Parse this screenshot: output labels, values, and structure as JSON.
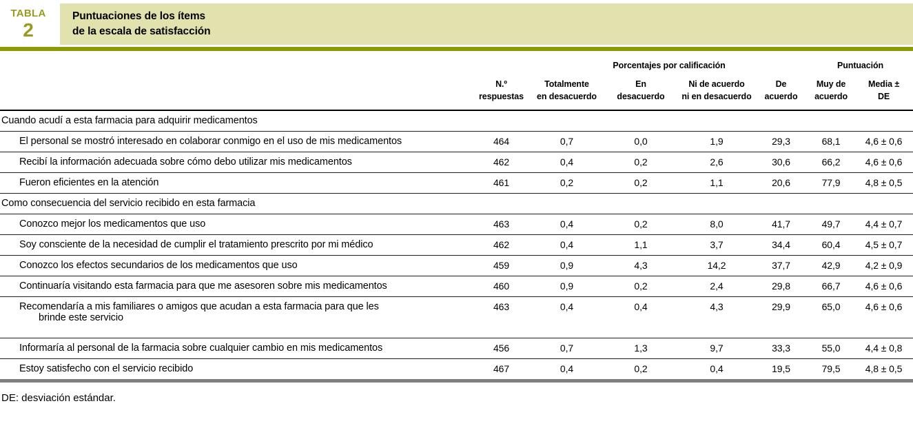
{
  "header": {
    "tab_label": "TABLA",
    "tab_number": "2",
    "title_line1": "Puntuaciones de los ítems",
    "title_line2": "de la escala de satisfacción"
  },
  "colors": {
    "olive_accent_text": "#999a1e",
    "olive_bar": "#8e9906",
    "title_box_bg": "#e2e2af",
    "table_bottom_bar": "#7f7f7f"
  },
  "table": {
    "group_headers": {
      "percentages": "Porcentajes por calificación",
      "score": "Puntuación"
    },
    "columns": [
      "N.º\nrespuestas",
      "Totalmente\nen desacuerdo",
      "En\ndesacuerdo",
      "Ni de acuerdo\nni en desacuerdo",
      "De\nacuerdo",
      "Muy de\nacuerdo",
      "Media ±\nDE"
    ],
    "rows": [
      {
        "type": "section",
        "label": "Cuando acudí a esta farmacia para adquirir medicamentos"
      },
      {
        "type": "item",
        "label": "El personal se mostró interesado en colaborar conmigo en el uso de mis medicamentos",
        "values": [
          "464",
          "0,7",
          "0,0",
          "1,9",
          "29,3",
          "68,1",
          "4,6 ± 0,6"
        ]
      },
      {
        "type": "item",
        "label": "Recibí la información adecuada sobre cómo debo utilizar mis medicamentos",
        "values": [
          "462",
          "0,4",
          "0,2",
          "2,6",
          "30,6",
          "66,2",
          "4,6 ± 0,6"
        ]
      },
      {
        "type": "item",
        "label": "Fueron eficientes en la atención",
        "values": [
          "461",
          "0,2",
          "0,2",
          "1,1",
          "20,6",
          "77,9",
          "4,8 ± 0,5"
        ]
      },
      {
        "type": "section",
        "label": "Como consecuencia del servicio recibido en esta farmacia"
      },
      {
        "type": "item",
        "label": "Conozco mejor los medicamentos que uso",
        "values": [
          "463",
          "0,4",
          "0,2",
          "8,0",
          "41,7",
          "49,7",
          "4,4 ± 0,7"
        ]
      },
      {
        "type": "item",
        "label": "Soy consciente de la necesidad de cumplir el tratamiento prescrito por mi médico",
        "values": [
          "462",
          "0,4",
          "1,1",
          "3,7",
          "34,4",
          "60,4",
          "4,5 ± 0,7"
        ]
      },
      {
        "type": "item",
        "label": "Conozco los efectos secundarios de los medicamentos que uso",
        "values": [
          "459",
          "0,9",
          "4,3",
          "14,2",
          "37,7",
          "42,9",
          "4,2 ± 0,9"
        ]
      },
      {
        "type": "item",
        "label": "Continuaría visitando esta farmacia para que me asesoren sobre mis medicamentos",
        "values": [
          "460",
          "0,9",
          "0,2",
          "2,4",
          "29,8",
          "66,7",
          "4,6 ± 0,6"
        ]
      },
      {
        "type": "item",
        "label": "Recomendaría a mis familiares o amigos que acudan a esta farmacia para que les\nbrinde este servicio",
        "values": [
          "463",
          "0,4",
          "0,4",
          "4,3",
          "29,9",
          "65,0",
          "4,6 ± 0,6"
        ]
      },
      {
        "type": "item",
        "label": "Informaría al personal de la farmacia sobre cualquier cambio en mis medicamentos",
        "values": [
          "456",
          "0,7",
          "1,3",
          "9,7",
          "33,3",
          "55,0",
          "4,4 ± 0,8"
        ]
      },
      {
        "type": "item",
        "label": "Estoy satisfecho con el servicio recibido",
        "values": [
          "467",
          "0,4",
          "0,2",
          "0,4",
          "19,5",
          "79,5",
          "4,8 ± 0,5"
        ]
      }
    ]
  },
  "footnote": "DE: desviación estándar."
}
